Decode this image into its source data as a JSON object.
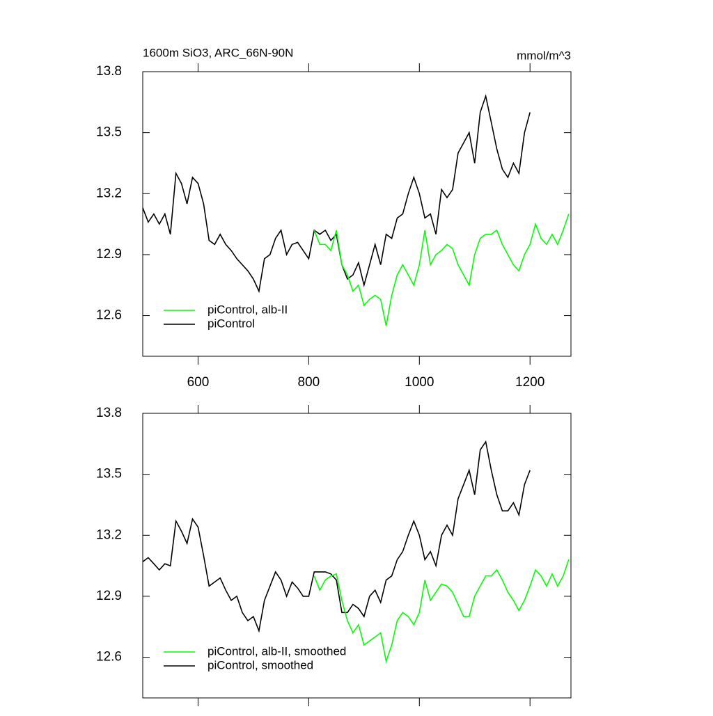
{
  "chart_data": [
    {
      "type": "line",
      "title": "1600m SiO3, ARC_66N-90N",
      "units": "mmol/m^3",
      "x": [
        500,
        510,
        520,
        530,
        540,
        550,
        560,
        570,
        580,
        590,
        600,
        610,
        620,
        630,
        640,
        650,
        660,
        670,
        680,
        690,
        700,
        710,
        720,
        730,
        740,
        750,
        760,
        770,
        780,
        790,
        800,
        810,
        820,
        830,
        840,
        850,
        860,
        870,
        880,
        890,
        900,
        910,
        920,
        930,
        940,
        950,
        960,
        970,
        980,
        990,
        1000,
        1010,
        1020,
        1030,
        1040,
        1050,
        1060,
        1070,
        1080,
        1090,
        1100,
        1110,
        1120,
        1130,
        1140,
        1150,
        1160,
        1170,
        1180,
        1190,
        1200,
        1210,
        1220,
        1230,
        1240,
        1250,
        1260,
        1270
      ],
      "xlim": [
        500,
        1274
      ],
      "xticks": [
        600,
        800,
        1000,
        1200
      ],
      "ylim": [
        12.4,
        13.8
      ],
      "yticks": [
        12.6,
        12.9,
        13.2,
        13.5,
        13.8
      ],
      "legend": "lower left",
      "series": [
        {
          "name": "piControl",
          "color": "#000000",
          "values": [
            13.13,
            13.06,
            13.1,
            13.05,
            13.1,
            13.0,
            13.3,
            13.25,
            13.15,
            13.28,
            13.25,
            13.15,
            12.97,
            12.95,
            13.0,
            12.95,
            12.92,
            12.88,
            12.85,
            12.82,
            12.78,
            12.72,
            12.88,
            12.9,
            12.98,
            13.02,
            12.9,
            12.95,
            12.96,
            12.92,
            12.88,
            13.02,
            13.0,
            13.02,
            12.97,
            13.0,
            12.85,
            12.78,
            12.8,
            12.86,
            12.75,
            12.85,
            12.95,
            12.85,
            13.0,
            12.98,
            13.08,
            13.1,
            13.2,
            13.28,
            13.2,
            13.08,
            13.1,
            13.0,
            13.22,
            13.18,
            13.22,
            13.4,
            13.45,
            13.5,
            13.35,
            13.6,
            13.68,
            13.55,
            13.42,
            13.32,
            13.28,
            13.35,
            13.3,
            13.5,
            13.6,
            null,
            null,
            null,
            null,
            null,
            null,
            null
          ]
        },
        {
          "name": "piControl, alb-II",
          "color": "#00ff00",
          "values": [
            null,
            null,
            null,
            null,
            null,
            null,
            null,
            null,
            null,
            null,
            null,
            null,
            null,
            null,
            null,
            null,
            null,
            null,
            null,
            null,
            null,
            null,
            null,
            null,
            null,
            null,
            null,
            null,
            null,
            null,
            null,
            13.02,
            12.95,
            12.95,
            12.92,
            13.02,
            12.85,
            12.8,
            12.72,
            12.75,
            12.65,
            12.68,
            12.7,
            12.68,
            12.55,
            12.7,
            12.8,
            12.85,
            12.8,
            12.75,
            12.85,
            13.02,
            12.85,
            12.9,
            12.92,
            12.95,
            12.93,
            12.85,
            12.8,
            12.75,
            12.9,
            12.98,
            13.0,
            13.0,
            13.02,
            12.95,
            12.9,
            12.85,
            12.82,
            12.9,
            12.95,
            13.05,
            12.98,
            12.95,
            13.0,
            12.95,
            13.02,
            13.1
          ]
        }
      ]
    },
    {
      "type": "line",
      "x": [
        500,
        510,
        520,
        530,
        540,
        550,
        560,
        570,
        580,
        590,
        600,
        610,
        620,
        630,
        640,
        650,
        660,
        670,
        680,
        690,
        700,
        710,
        720,
        730,
        740,
        750,
        760,
        770,
        780,
        790,
        800,
        810,
        820,
        830,
        840,
        850,
        860,
        870,
        880,
        890,
        900,
        910,
        920,
        930,
        940,
        950,
        960,
        970,
        980,
        990,
        1000,
        1010,
        1020,
        1030,
        1040,
        1050,
        1060,
        1070,
        1080,
        1090,
        1100,
        1110,
        1120,
        1130,
        1140,
        1150,
        1160,
        1170,
        1180,
        1190,
        1200,
        1210,
        1220,
        1230,
        1240,
        1250,
        1260,
        1270
      ],
      "xlim": [
        500,
        1274
      ],
      "ylim": [
        12.4,
        13.8
      ],
      "yticks": [
        12.6,
        12.9,
        13.2,
        13.5,
        13.8
      ],
      "legend": "lower left",
      "series": [
        {
          "name": "piControl, smoothed",
          "color": "#000000",
          "values": [
            13.07,
            13.09,
            13.06,
            13.03,
            13.06,
            13.05,
            13.27,
            13.22,
            13.16,
            13.28,
            13.24,
            13.1,
            12.95,
            12.97,
            12.99,
            12.93,
            12.88,
            12.9,
            12.82,
            12.78,
            12.8,
            12.73,
            12.88,
            12.95,
            13.02,
            12.98,
            12.9,
            12.97,
            12.94,
            12.9,
            12.9,
            13.02,
            13.02,
            13.02,
            13.01,
            12.98,
            12.82,
            12.82,
            12.86,
            12.84,
            12.8,
            12.9,
            12.93,
            12.87,
            12.98,
            13.0,
            13.08,
            13.12,
            13.2,
            13.27,
            13.2,
            13.08,
            13.12,
            13.05,
            13.2,
            13.25,
            13.2,
            13.38,
            13.45,
            13.52,
            13.4,
            13.62,
            13.66,
            13.52,
            13.4,
            13.32,
            13.32,
            13.36,
            13.3,
            13.45,
            13.52,
            null,
            null,
            null,
            null,
            null,
            null,
            null
          ]
        },
        {
          "name": "piControl, alb-II, smoothed",
          "color": "#00ff00",
          "values": [
            null,
            null,
            null,
            null,
            null,
            null,
            null,
            null,
            null,
            null,
            null,
            null,
            null,
            null,
            null,
            null,
            null,
            null,
            null,
            null,
            null,
            null,
            null,
            null,
            null,
            null,
            null,
            null,
            null,
            null,
            null,
            13.0,
            12.93,
            12.98,
            13.0,
            13.01,
            12.88,
            12.78,
            12.72,
            12.76,
            12.66,
            12.68,
            12.7,
            12.72,
            12.58,
            12.66,
            12.78,
            12.82,
            12.8,
            12.76,
            12.82,
            12.98,
            12.88,
            12.92,
            12.96,
            12.95,
            12.92,
            12.86,
            12.8,
            12.8,
            12.9,
            12.95,
            13.0,
            13.0,
            13.03,
            12.98,
            12.92,
            12.88,
            12.83,
            12.88,
            12.95,
            13.03,
            13.0,
            12.95,
            13.01,
            12.95,
            13.0,
            13.08
          ]
        }
      ]
    }
  ]
}
